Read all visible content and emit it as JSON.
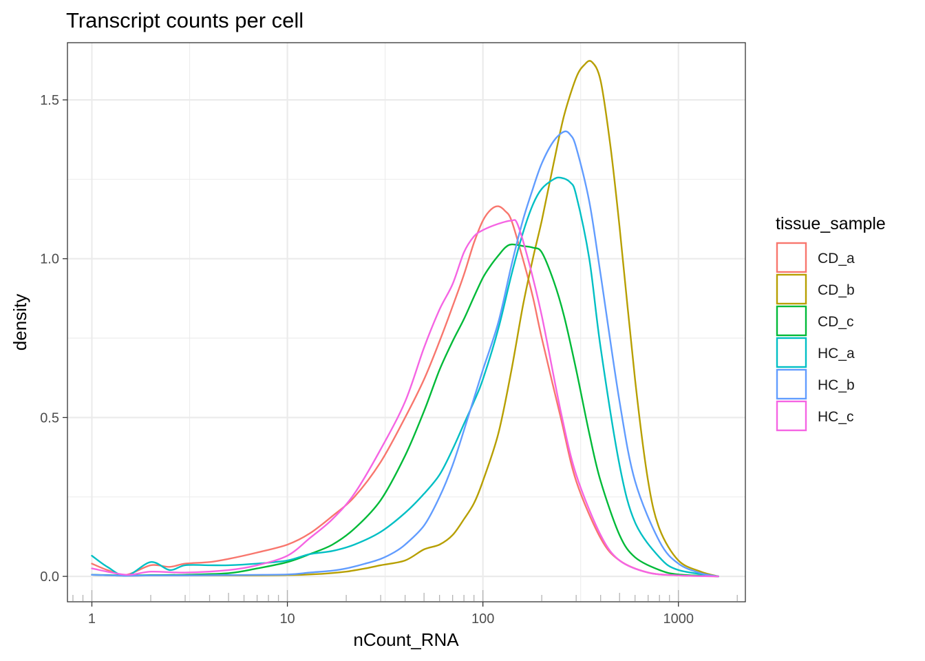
{
  "chart_data": {
    "type": "line",
    "subtype": "density",
    "title": "Transcript counts per cell",
    "xlabel": "nCount_RNA",
    "ylabel": "density",
    "xscale": "log10",
    "xlim": [
      0.75,
      2200
    ],
    "ylim": [
      -0.08,
      1.68
    ],
    "x_ticks": [
      1,
      10,
      100,
      1000
    ],
    "x_tick_labels": [
      "1",
      "10",
      "100",
      "1000"
    ],
    "y_ticks": [
      0.0,
      0.5,
      1.0,
      1.5
    ],
    "y_tick_labels": [
      "0.0",
      "0.5",
      "1.0",
      "1.5"
    ],
    "rug": {
      "major": [
        1,
        5,
        10,
        50,
        100,
        500,
        1000
      ],
      "minor": [
        0.8,
        0.9,
        2,
        3,
        4,
        6,
        7,
        8,
        9,
        20,
        30,
        40,
        60,
        70,
        80,
        90,
        200,
        300,
        400,
        600,
        700,
        800,
        900,
        2000
      ]
    },
    "legend": {
      "title": "tissue_sample",
      "position": "right"
    },
    "series": [
      {
        "name": "CD_a",
        "color": "#F8766D",
        "x": [
          1,
          1.2,
          1.5,
          2,
          2.5,
          3,
          4,
          5,
          7,
          10,
          13,
          17,
          22,
          30,
          40,
          50,
          60,
          70,
          80,
          90,
          100,
          110,
          120,
          130,
          140,
          160,
          180,
          200,
          250,
          300,
          400,
          500,
          700,
          1000,
          1600
        ],
        "values": [
          0.04,
          0.02,
          0.005,
          0.035,
          0.03,
          0.04,
          0.045,
          0.055,
          0.075,
          0.1,
          0.135,
          0.19,
          0.25,
          0.36,
          0.5,
          0.62,
          0.74,
          0.85,
          0.95,
          1.05,
          1.12,
          1.155,
          1.165,
          1.15,
          1.12,
          1.0,
          0.88,
          0.75,
          0.5,
          0.3,
          0.12,
          0.05,
          0.012,
          0.003,
          0.0
        ]
      },
      {
        "name": "CD_b",
        "color": "#B79F00",
        "x": [
          1,
          1.5,
          2,
          3,
          5,
          10,
          15,
          20,
          25,
          30,
          40,
          50,
          60,
          70,
          80,
          90,
          100,
          120,
          140,
          160,
          180,
          200,
          230,
          260,
          300,
          330,
          360,
          400,
          450,
          500,
          600,
          700,
          800,
          1000,
          1300,
          1600
        ],
        "values": [
          0.005,
          0.002,
          0.003,
          0.003,
          0.003,
          0.004,
          0.008,
          0.015,
          0.025,
          0.035,
          0.05,
          0.085,
          0.1,
          0.13,
          0.18,
          0.23,
          0.3,
          0.45,
          0.65,
          0.85,
          1.0,
          1.12,
          1.3,
          1.45,
          1.57,
          1.61,
          1.62,
          1.56,
          1.35,
          1.1,
          0.62,
          0.3,
          0.15,
          0.05,
          0.015,
          0.0
        ]
      },
      {
        "name": "CD_c",
        "color": "#00BA38",
        "x": [
          1,
          1.5,
          2,
          3,
          5,
          7,
          10,
          13,
          17,
          22,
          30,
          40,
          50,
          60,
          70,
          80,
          90,
          100,
          110,
          120,
          130,
          140,
          160,
          180,
          200,
          230,
          260,
          300,
          350,
          400,
          500,
          600,
          800,
          1000,
          1600
        ],
        "values": [
          0.005,
          0.003,
          0.004,
          0.005,
          0.01,
          0.025,
          0.045,
          0.07,
          0.1,
          0.15,
          0.24,
          0.38,
          0.52,
          0.65,
          0.74,
          0.81,
          0.88,
          0.94,
          0.98,
          1.01,
          1.035,
          1.045,
          1.04,
          1.035,
          1.02,
          0.93,
          0.82,
          0.65,
          0.45,
          0.3,
          0.13,
          0.06,
          0.02,
          0.006,
          0.0
        ]
      },
      {
        "name": "HC_a",
        "color": "#00BFC4",
        "x": [
          1,
          1.2,
          1.5,
          2,
          2.5,
          3,
          4,
          5,
          7,
          10,
          13,
          17,
          22,
          30,
          40,
          50,
          60,
          70,
          80,
          90,
          100,
          120,
          140,
          160,
          180,
          200,
          230,
          250,
          280,
          300,
          350,
          400,
          500,
          600,
          800,
          1000,
          1600
        ],
        "values": [
          0.065,
          0.03,
          0.002,
          0.045,
          0.02,
          0.035,
          0.035,
          0.035,
          0.04,
          0.05,
          0.07,
          0.08,
          0.1,
          0.14,
          0.2,
          0.26,
          0.32,
          0.4,
          0.48,
          0.55,
          0.62,
          0.78,
          0.95,
          1.08,
          1.17,
          1.22,
          1.25,
          1.255,
          1.24,
          1.2,
          1.0,
          0.72,
          0.35,
          0.17,
          0.06,
          0.02,
          0.0
        ]
      },
      {
        "name": "HC_b",
        "color": "#619CFF",
        "x": [
          1,
          1.5,
          2,
          3,
          5,
          10,
          13,
          17,
          20,
          25,
          30,
          35,
          40,
          50,
          60,
          70,
          80,
          90,
          100,
          120,
          140,
          160,
          180,
          200,
          230,
          260,
          280,
          300,
          350,
          400,
          500,
          600,
          800,
          1000,
          1300,
          1600
        ],
        "values": [
          0.005,
          0.002,
          0.003,
          0.003,
          0.004,
          0.006,
          0.012,
          0.018,
          0.025,
          0.04,
          0.055,
          0.075,
          0.1,
          0.16,
          0.25,
          0.35,
          0.46,
          0.56,
          0.65,
          0.8,
          0.98,
          1.12,
          1.22,
          1.3,
          1.37,
          1.4,
          1.39,
          1.35,
          1.18,
          0.95,
          0.55,
          0.3,
          0.11,
          0.04,
          0.01,
          0.0
        ]
      },
      {
        "name": "HC_c",
        "color": "#F564E3",
        "x": [
          1,
          1.5,
          2,
          3,
          5,
          7,
          10,
          13,
          17,
          22,
          30,
          40,
          50,
          60,
          70,
          80,
          90,
          100,
          120,
          140,
          150,
          170,
          200,
          250,
          300,
          400,
          500,
          700,
          1000,
          1600
        ],
        "values": [
          0.025,
          0.005,
          0.015,
          0.012,
          0.02,
          0.035,
          0.065,
          0.12,
          0.18,
          0.26,
          0.4,
          0.55,
          0.72,
          0.84,
          0.92,
          1.02,
          1.07,
          1.09,
          1.11,
          1.12,
          1.11,
          1.0,
          0.82,
          0.52,
          0.32,
          0.13,
          0.05,
          0.012,
          0.003,
          0.0
        ]
      }
    ]
  }
}
